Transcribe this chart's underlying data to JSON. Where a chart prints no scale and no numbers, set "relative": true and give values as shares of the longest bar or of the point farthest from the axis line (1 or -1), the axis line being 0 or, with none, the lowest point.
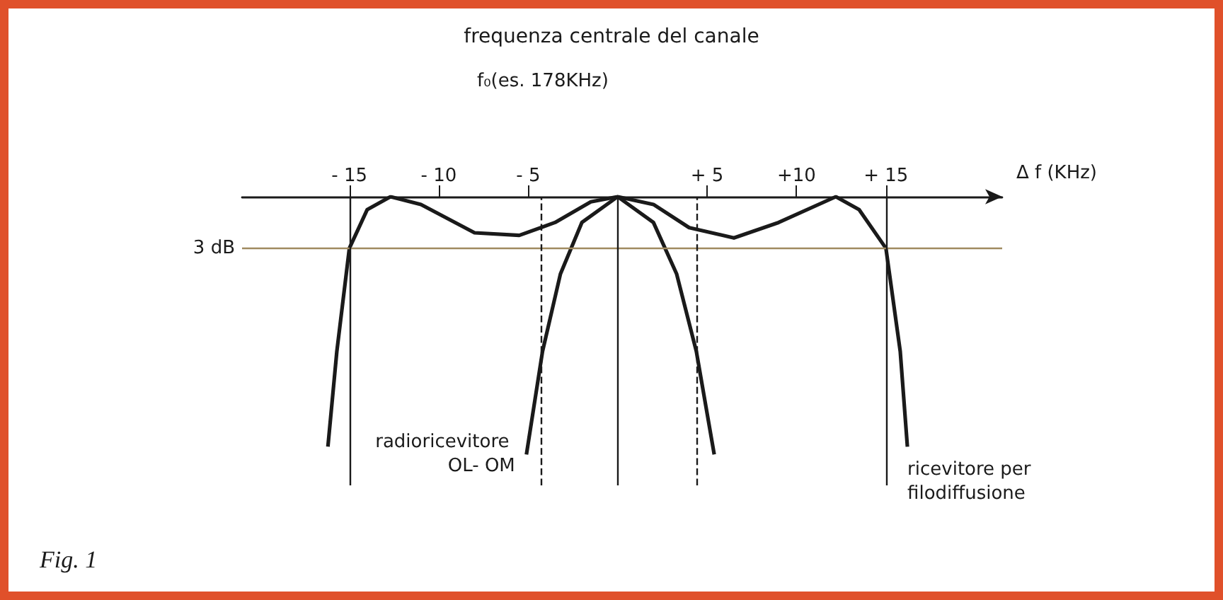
{
  "chart_data": {
    "type": "line",
    "title": "frequenza centrale del canale",
    "subtitle": "f₀(es. 178KHz)",
    "xlabel": "Δ f (KHz)",
    "relative": true,
    "marker": "none",
    "line_style": "solid",
    "grid": false,
    "legend": false,
    "xlim": [
      -21,
      21.5
    ],
    "xticks": [
      {
        "value": -15,
        "label": "- 15"
      },
      {
        "value": -10,
        "label": "- 10"
      },
      {
        "value": -5,
        "label": "- 5"
      },
      {
        "value": 5,
        "label": "+ 5"
      },
      {
        "value": 10,
        "label": "+10"
      },
      {
        "value": 15,
        "label": "+ 15"
      }
    ],
    "series": [
      {
        "name": "ricevitore per filodiffusione",
        "color": "#1a1a1a",
        "x": [
          -16.2,
          -15.7,
          -15,
          -14,
          -12.7,
          -11,
          -8,
          -5.5,
          -3.5,
          -1.5,
          0,
          2,
          4,
          6.5,
          9,
          12.2,
          13.5,
          15,
          15.8,
          16.2
        ],
        "values": [
          -0.97,
          -0.6,
          -0.2,
          -0.05,
          0,
          -0.03,
          -0.14,
          -0.15,
          -0.1,
          -0.02,
          0,
          -0.03,
          -0.12,
          -0.16,
          -0.1,
          0,
          -0.05,
          -0.2,
          -0.6,
          -0.97
        ]
      },
      {
        "name": "radioricevitore OL- OM",
        "color": "#1a1a1a",
        "x": [
          -5.1,
          -4.2,
          -3.2,
          -2,
          0,
          2,
          3.3,
          4.4,
          5.4
        ],
        "values": [
          -1,
          -0.6,
          -0.3,
          -0.1,
          0,
          -0.1,
          -0.3,
          -0.6,
          -1
        ]
      }
    ],
    "ref_lines": [
      {
        "axis": "y",
        "value": -0.2,
        "label": "3 dB",
        "color": "#a08a60",
        "line_style": "solid"
      },
      {
        "axis": "x",
        "value": -15,
        "label": null,
        "color": "#1a1a1a",
        "line_style": "solid"
      },
      {
        "axis": "x",
        "value": 15,
        "label": null,
        "color": "#1a1a1a",
        "line_style": "solid"
      },
      {
        "axis": "x",
        "value": 0,
        "label": null,
        "color": "#1a1a1a",
        "line_style": "solid"
      },
      {
        "axis": "x",
        "value": -4.3,
        "label": null,
        "color": "#1a1a1a",
        "line_style": "dashed"
      },
      {
        "axis": "x",
        "value": 4.4,
        "label": null,
        "color": "#1a1a1a",
        "line_style": "dashed"
      }
    ],
    "annotations": [
      "Fig. 1"
    ]
  }
}
